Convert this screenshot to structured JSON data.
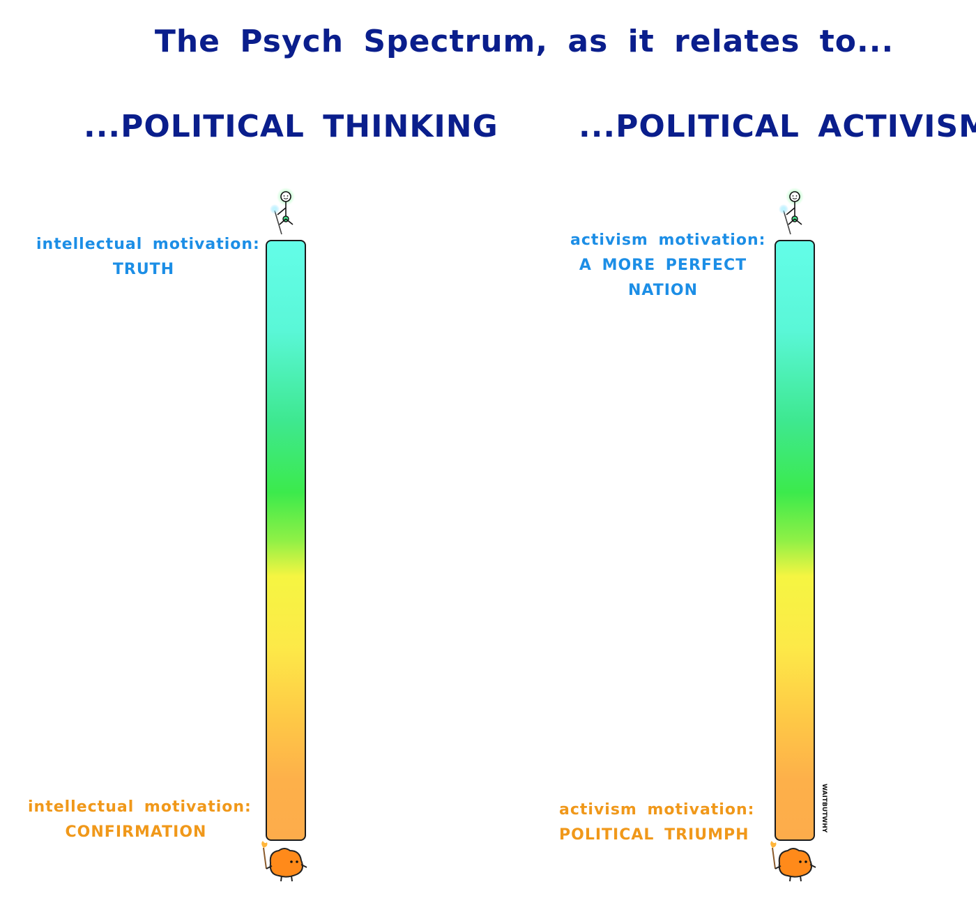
{
  "title": "The Psych Spectrum, as it relates to...",
  "columns": [
    {
      "heading": "...POLITICAL THINKING",
      "top_label": {
        "lines": [
          "intellectual motivation:",
          "TRUTH"
        ]
      },
      "bottom_label": {
        "lines": [
          "intellectual motivation:",
          "CONFIRMATION"
        ]
      }
    },
    {
      "heading": "...POLITICAL ACTIVISM",
      "top_label": {
        "lines": [
          "activism motivation:",
          "A MORE PERFECT",
          "NATION"
        ]
      },
      "bottom_label": {
        "lines": [
          "activism motivation:",
          "POLITICAL TRIUMPH"
        ]
      }
    }
  ],
  "signature": "WAITBUTWHY",
  "colors": {
    "title": "#0a1e8c",
    "top_label": "#1c8ee6",
    "bottom_label": "#f0981a",
    "spectrum_top": "#63fde8",
    "spectrum_middle": "#3cea4c",
    "spectrum_yellow": "#f5f542",
    "spectrum_bottom": "#fdac4b"
  },
  "icons": {
    "top_figure": "enlightened-stick-figure-icon",
    "bottom_figure": "orange-primitive-mind-creature-icon"
  }
}
